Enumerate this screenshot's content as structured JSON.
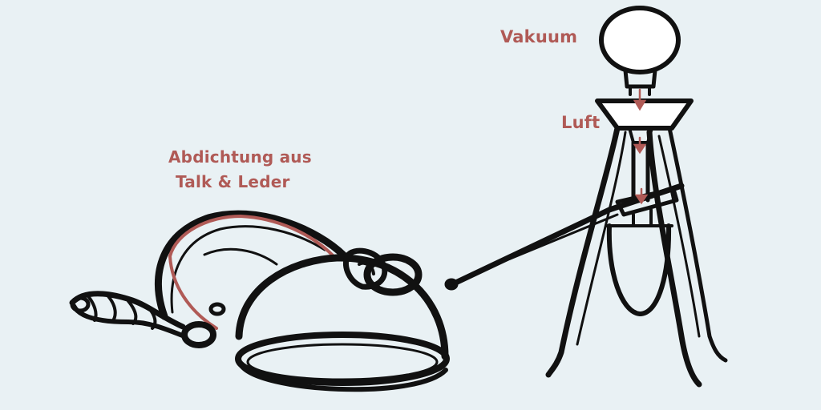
{
  "labels": {
    "seal_line1": "Abdichtung aus",
    "seal_line2": "Talk & Leder",
    "vacuum": "Vakuum",
    "air": "Luft"
  },
  "colors": {
    "background": "#e9f1f4",
    "ink": "#111111",
    "accent": "#b05a56"
  }
}
